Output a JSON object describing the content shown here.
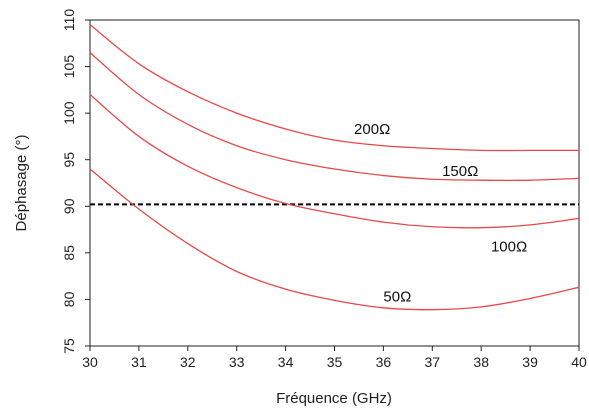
{
  "chart_data": {
    "type": "line",
    "title": "",
    "xlabel": "Fréquence (GHz)",
    "ylabel": "Déphasage (°)",
    "xlim": [
      30,
      40
    ],
    "ylim": [
      75,
      110
    ],
    "xticks": [
      "30",
      "31",
      "32",
      "33",
      "34",
      "35",
      "36",
      "37",
      "38",
      "39",
      "40"
    ],
    "yticks": [
      "75",
      "80",
      "85",
      "90",
      "95",
      "100",
      "105",
      "110"
    ],
    "grid": false,
    "legend": "none",
    "line_color": "#e8484a",
    "reference_color": "#000000",
    "series": [
      {
        "label": "200Ω",
        "label_at": [
          35.4,
          98.3
        ],
        "x": [
          30,
          31,
          32,
          33,
          34,
          35,
          36,
          37,
          38,
          39,
          40
        ],
        "y": [
          109.5,
          105.3,
          102.3,
          100.0,
          98.3,
          97.1,
          96.5,
          96.2,
          96.0,
          96.0,
          96.0
        ]
      },
      {
        "label": "150Ω",
        "label_at": [
          37.2,
          93.8
        ],
        "x": [
          30,
          31,
          32,
          33,
          34,
          35,
          36,
          37,
          38,
          39,
          40
        ],
        "y": [
          106.5,
          102.0,
          98.8,
          96.5,
          95.0,
          94.0,
          93.3,
          92.9,
          92.8,
          92.8,
          93.0
        ]
      },
      {
        "label": "100Ω",
        "label_at": [
          38.2,
          85.7
        ],
        "x": [
          30,
          31,
          32,
          33,
          34,
          35,
          36,
          37,
          38,
          39,
          40
        ],
        "y": [
          102.0,
          97.5,
          94.3,
          92.0,
          90.3,
          89.2,
          88.3,
          87.8,
          87.7,
          88.0,
          88.7
        ]
      },
      {
        "label": "50Ω",
        "label_at": [
          36.0,
          80.3
        ],
        "x": [
          30,
          31,
          32,
          33,
          34,
          35,
          36,
          37,
          38,
          39,
          40
        ],
        "y": [
          94.0,
          89.7,
          86.0,
          83.0,
          81.1,
          79.9,
          79.1,
          78.9,
          79.2,
          80.1,
          81.3
        ]
      }
    ],
    "reference_line": {
      "y": 90.2,
      "style": "dashed"
    }
  }
}
